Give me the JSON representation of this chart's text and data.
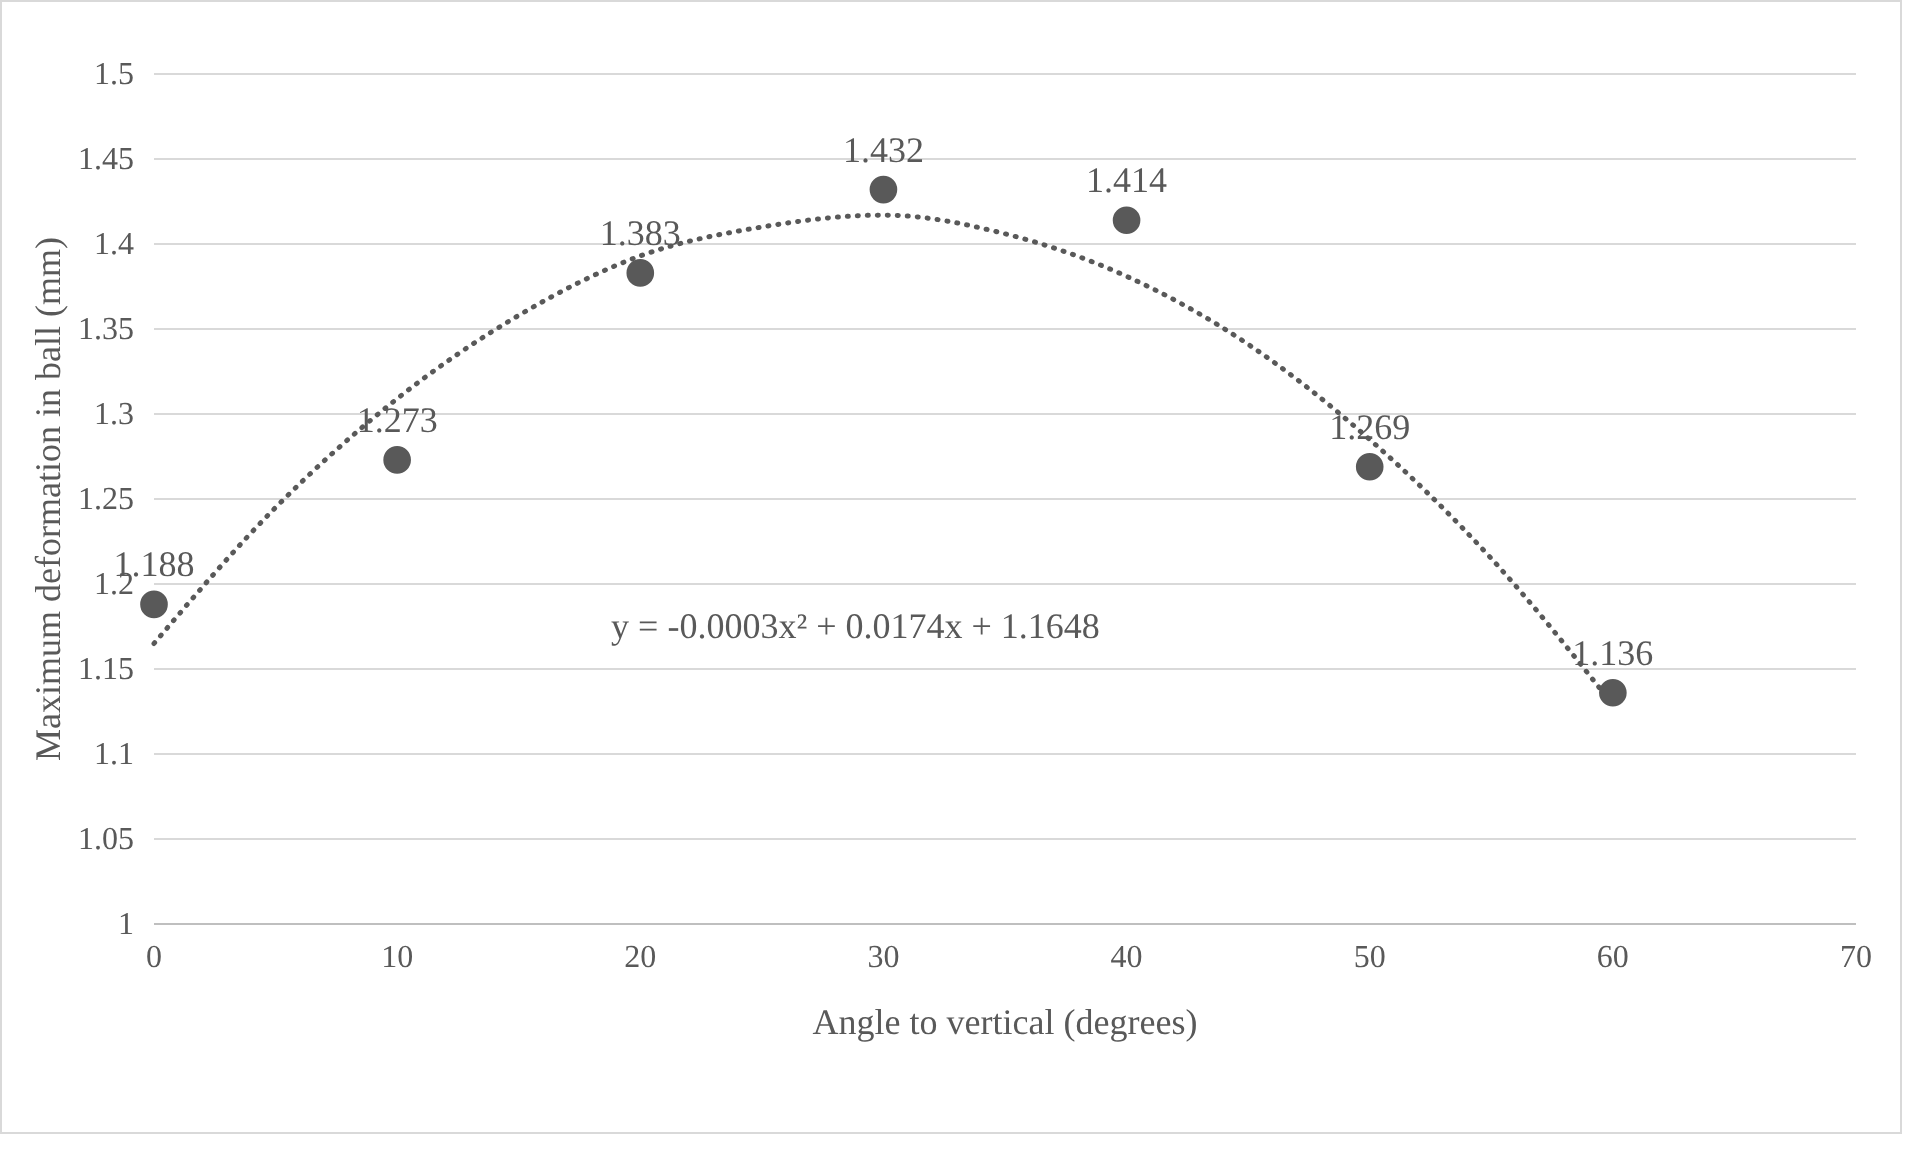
{
  "chart_data": {
    "type": "scatter",
    "xlabel": "Angle to vertical (degrees)",
    "ylabel": "Maximum deformation in ball (mm)",
    "xlim": [
      0,
      70
    ],
    "xticks": [
      0,
      10,
      20,
      30,
      40,
      50,
      60,
      70
    ],
    "ylim": [
      1,
      1.5
    ],
    "yticks": [
      {
        "value": 1,
        "label": "1"
      },
      {
        "value": 1.05,
        "label": "1.05"
      },
      {
        "value": 1.1,
        "label": "1.1"
      },
      {
        "value": 1.15,
        "label": "1.15"
      },
      {
        "value": 1.2,
        "label": "1.2"
      },
      {
        "value": 1.25,
        "label": "1.25"
      },
      {
        "value": 1.3,
        "label": "1.3"
      },
      {
        "value": 1.35,
        "label": "1.35"
      },
      {
        "value": 1.4,
        "label": "1.4"
      },
      {
        "value": 1.45,
        "label": "1.45"
      },
      {
        "value": 1.5,
        "label": "1.5"
      }
    ],
    "grid": "y",
    "marker": "circle",
    "annotations": [
      "y = -0.0003x² + 0.0174x + 1.1648"
    ],
    "series": [
      {
        "color": "#595959",
        "x": [
          0,
          10,
          20,
          30,
          40,
          50,
          60
        ],
        "values": [
          1.188,
          1.273,
          1.383,
          1.432,
          1.414,
          1.269,
          1.136
        ],
        "value_labels": [
          "1.188",
          "1.273",
          "1.383",
          "1.432",
          "1.414",
          "1.269",
          "1.136"
        ]
      },
      {
        "type": "line",
        "color": "#595959",
        "line_style": "dotted",
        "marker": "none",
        "x": [
          0,
          5,
          10,
          15,
          20,
          25,
          30,
          35,
          40,
          45,
          50,
          55,
          60
        ],
        "values": [
          1.165,
          1.245,
          1.309,
          1.358,
          1.393,
          1.41,
          1.417,
          1.406,
          1.381,
          1.341,
          1.285,
          1.215,
          1.129
        ]
      }
    ]
  }
}
